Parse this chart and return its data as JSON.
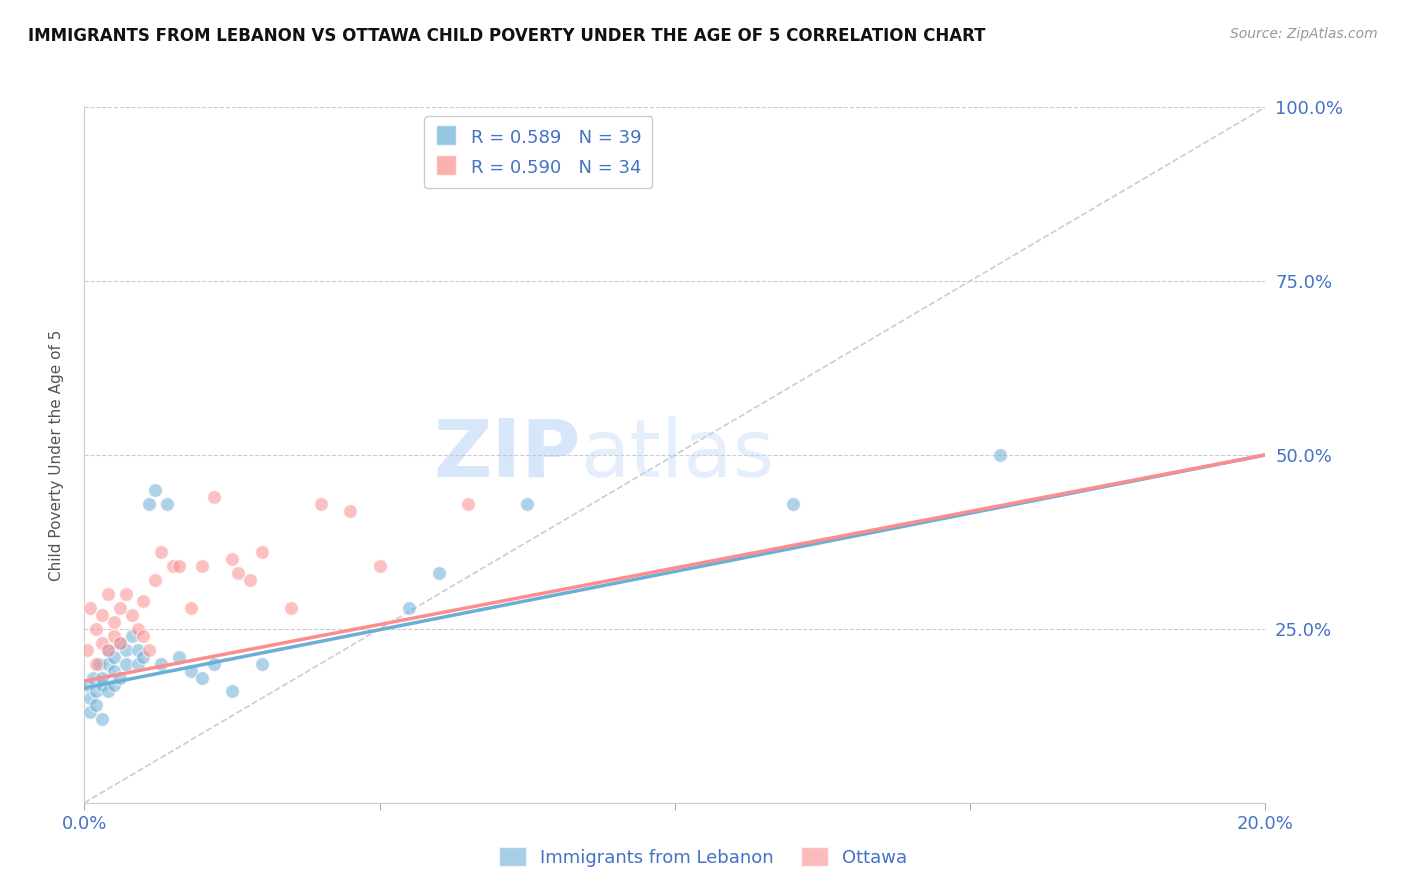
{
  "title": "IMMIGRANTS FROM LEBANON VS OTTAWA CHILD POVERTY UNDER THE AGE OF 5 CORRELATION CHART",
  "source": "Source: ZipAtlas.com",
  "ylabel": "Child Poverty Under the Age of 5",
  "xlim": [
    0.0,
    0.2
  ],
  "ylim": [
    0.0,
    1.0
  ],
  "xticks": [
    0.0,
    0.05,
    0.1,
    0.15,
    0.2
  ],
  "xticklabels": [
    "0.0%",
    "",
    "",
    "",
    "20.0%"
  ],
  "yticks": [
    0.0,
    0.25,
    0.5,
    0.75,
    1.0
  ],
  "yticklabels": [
    "",
    "25.0%",
    "50.0%",
    "75.0%",
    "100.0%"
  ],
  "blue_color": "#6baed6",
  "pink_color": "#fc8d8d",
  "legend_R_blue": "R = 0.589",
  "legend_N_blue": "N = 39",
  "legend_R_pink": "R = 0.590",
  "legend_N_pink": "N = 34",
  "legend_label_blue": "Immigrants from Lebanon",
  "legend_label_pink": "Ottawa",
  "watermark_zip": "ZIP",
  "watermark_atlas": "atlas",
  "blue_scatter_x": [
    0.0005,
    0.001,
    0.001,
    0.0015,
    0.002,
    0.002,
    0.0025,
    0.003,
    0.003,
    0.003,
    0.004,
    0.004,
    0.004,
    0.005,
    0.005,
    0.005,
    0.006,
    0.006,
    0.007,
    0.007,
    0.008,
    0.009,
    0.009,
    0.01,
    0.011,
    0.012,
    0.013,
    0.014,
    0.016,
    0.018,
    0.02,
    0.022,
    0.025,
    0.03,
    0.055,
    0.06,
    0.075,
    0.12,
    0.155
  ],
  "blue_scatter_y": [
    0.17,
    0.13,
    0.15,
    0.18,
    0.16,
    0.14,
    0.2,
    0.12,
    0.17,
    0.18,
    0.16,
    0.2,
    0.22,
    0.19,
    0.17,
    0.21,
    0.18,
    0.23,
    0.22,
    0.2,
    0.24,
    0.2,
    0.22,
    0.21,
    0.43,
    0.45,
    0.2,
    0.43,
    0.21,
    0.19,
    0.18,
    0.2,
    0.16,
    0.2,
    0.28,
    0.33,
    0.43,
    0.43,
    0.5
  ],
  "pink_scatter_x": [
    0.0005,
    0.001,
    0.002,
    0.002,
    0.003,
    0.003,
    0.004,
    0.004,
    0.005,
    0.005,
    0.006,
    0.006,
    0.007,
    0.008,
    0.009,
    0.01,
    0.01,
    0.011,
    0.012,
    0.013,
    0.015,
    0.016,
    0.018,
    0.02,
    0.022,
    0.025,
    0.026,
    0.028,
    0.03,
    0.035,
    0.04,
    0.045,
    0.05,
    0.065
  ],
  "pink_scatter_y": [
    0.22,
    0.28,
    0.2,
    0.25,
    0.23,
    0.27,
    0.3,
    0.22,
    0.24,
    0.26,
    0.28,
    0.23,
    0.3,
    0.27,
    0.25,
    0.24,
    0.29,
    0.22,
    0.32,
    0.36,
    0.34,
    0.34,
    0.28,
    0.34,
    0.44,
    0.35,
    0.33,
    0.32,
    0.36,
    0.28,
    0.43,
    0.42,
    0.34,
    0.43
  ],
  "blue_trend_x": [
    0.0,
    0.2
  ],
  "blue_trend_y": [
    0.165,
    0.5
  ],
  "pink_trend_x": [
    0.0,
    0.2
  ],
  "pink_trend_y": [
    0.175,
    0.5
  ],
  "ref_line_x": [
    0.0,
    0.2
  ],
  "ref_line_y": [
    0.0,
    1.0
  ],
  "title_fontsize": 12,
  "axis_tick_color": "#4472c4",
  "grid_color": "#cccccc",
  "marker_size": 100
}
